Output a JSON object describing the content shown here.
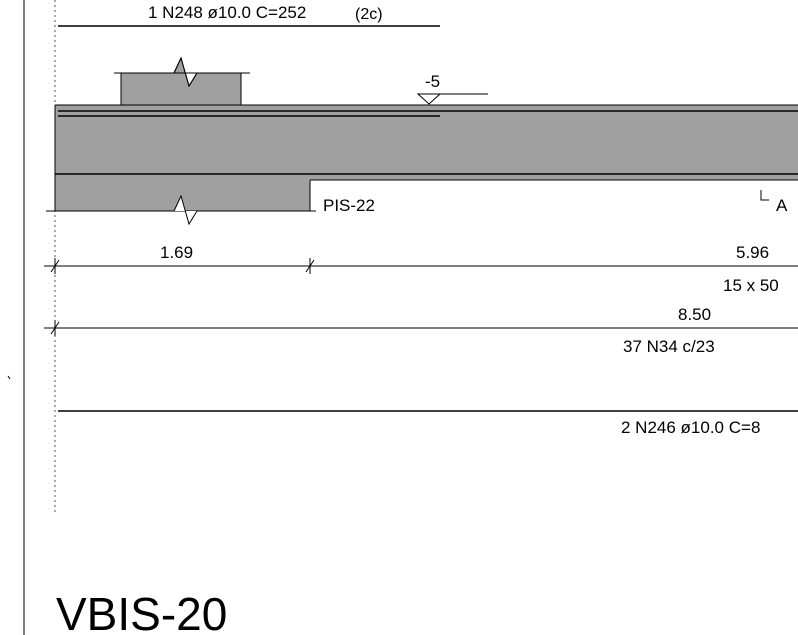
{
  "drawing": {
    "top_bar_label": "1 N248 ø10.0 C=252",
    "top_bar_suffix": "(2c)",
    "level_mark": "-5",
    "support_label": "PIS-22",
    "section_mark": "A",
    "span_left": "1.69",
    "span_right": "5.96",
    "section_size": "15 x 50",
    "total_length": "8.50",
    "stirrups": "37 N34 c/23",
    "bottom_bar_label": "2 N246 ø10.0 C=8",
    "beam_title": "VBIS-20"
  },
  "colors": {
    "concrete": "#a0a0a0",
    "line": "#000000",
    "background": "#ffffff"
  }
}
